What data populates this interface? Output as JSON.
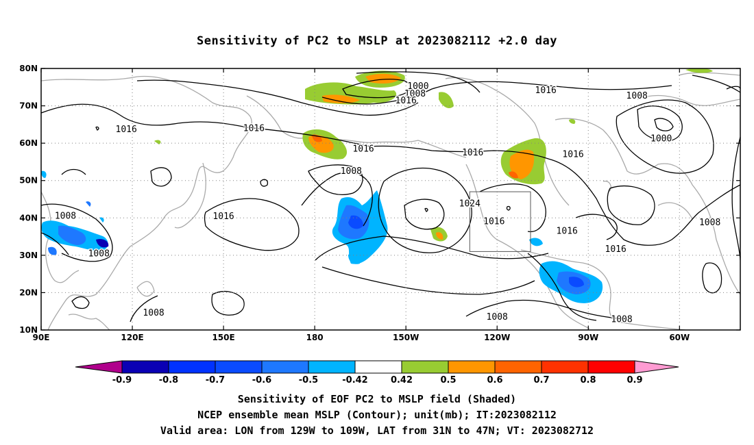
{
  "title": "Sensitivity of PC2 to MSLP at 2023082112 +2.0 day",
  "map": {
    "lon_labels": [
      "90E",
      "120E",
      "150E",
      "180",
      "150W",
      "120W",
      "90W",
      "60W"
    ],
    "lat_labels": [
      "80N",
      "70N",
      "60N",
      "50N",
      "40N",
      "30N",
      "20N",
      "10N"
    ],
    "lon_range": [
      90,
      320
    ],
    "lat_range": [
      10,
      80
    ],
    "grid": "dotted",
    "contour_labels": [
      {
        "text": "1016",
        "lon": 118,
        "lat": 63.7
      },
      {
        "text": "1016",
        "lon": 160,
        "lat": 64.0
      },
      {
        "text": "1016",
        "lon": 150,
        "lat": 40.4
      },
      {
        "text": "1008",
        "lon": 98,
        "lat": 40.5
      },
      {
        "text": "1008",
        "lon": 109,
        "lat": 30.4
      },
      {
        "text": "1008",
        "lon": 127,
        "lat": 14.6
      },
      {
        "text": "1008",
        "lon": 192,
        "lat": 52.5
      },
      {
        "text": "1016",
        "lon": 196,
        "lat": 58.5
      },
      {
        "text": "1000",
        "lon": 214,
        "lat": 75.2
      },
      {
        "text": "1008",
        "lon": 213,
        "lat": 73.2
      },
      {
        "text": "1016",
        "lon": 210,
        "lat": 71.4
      },
      {
        "text": "1024",
        "lon": 231,
        "lat": 43.8
      },
      {
        "text": "1016",
        "lon": 256,
        "lat": 74.1
      },
      {
        "text": "1008",
        "lon": 286,
        "lat": 72.7
      },
      {
        "text": "1016",
        "lon": 232,
        "lat": 57.5
      },
      {
        "text": "1016",
        "lon": 265,
        "lat": 57.0
      },
      {
        "text": "1016",
        "lon": 239,
        "lat": 39.0
      },
      {
        "text": "1016",
        "lon": 263,
        "lat": 36.5
      },
      {
        "text": "1016",
        "lon": 279,
        "lat": 31.6
      },
      {
        "text": "1000",
        "lon": 294,
        "lat": 61.2
      },
      {
        "text": "1008",
        "lon": 310,
        "lat": 38.8
      },
      {
        "text": "1008",
        "lon": 240,
        "lat": 13.5
      },
      {
        "text": "1008",
        "lon": 281,
        "lat": 12.8
      }
    ],
    "valid_box": {
      "lon_min": 231,
      "lon_max": 251,
      "lat_min": 31,
      "lat_max": 47
    }
  },
  "colorbar": {
    "labels": [
      "-0.9",
      "-0.8",
      "-0.7",
      "-0.6",
      "-0.5",
      "-0.42",
      "0.42",
      "0.5",
      "0.6",
      "0.7",
      "0.8",
      "0.9"
    ],
    "colors": [
      "#b0008c",
      "#0a00b4",
      "#0032ff",
      "#0a4bff",
      "#1e78ff",
      "#00b4ff",
      "#ffffff",
      "#98cc32",
      "#ff9600",
      "#ff6400",
      "#ff3200",
      "#ff0000",
      "#ff9bd2"
    ]
  },
  "captions": {
    "line1": "Sensitivity of EOF PC2 to MSLP field (Shaded)",
    "line2": "NCEP ensemble mean MSLP (Contour); unit(mb); IT:2023082112",
    "line3": "Valid area: LON from 129W to 109W, LAT from 31N to 47N; VT: 2023082712"
  }
}
